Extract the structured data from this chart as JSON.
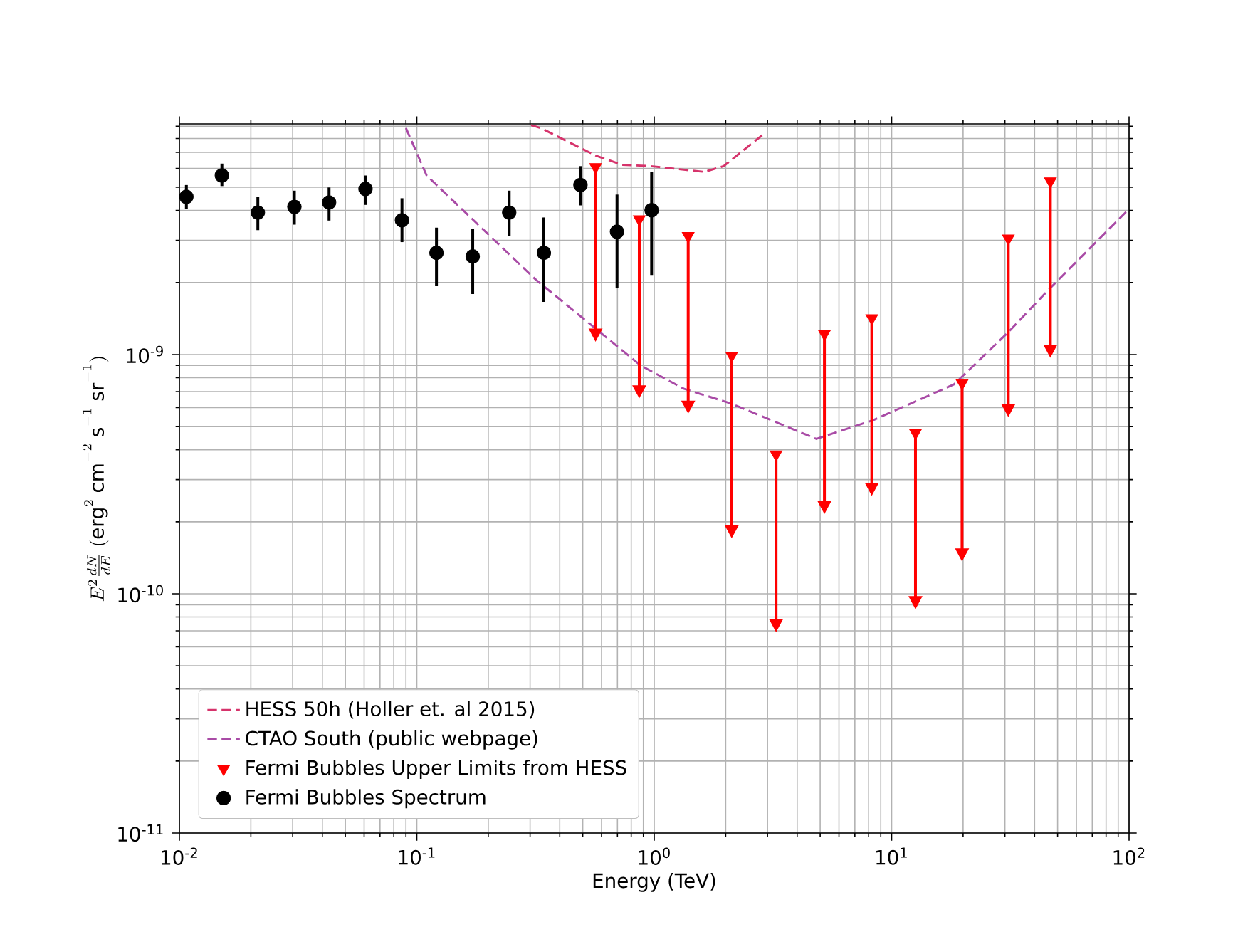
{
  "chart_data": {
    "type": "scatter",
    "xlabel": "Energy (TeV)",
    "ylabel": "E^{2}\\frac{dN}{dE}\\;(\\mathrm{erg}^{2}\\;\\mathrm{cm}^{-2}\\;\\mathrm{s}^{-1}\\;\\mathrm{sr}^{-1})",
    "log": "xy",
    "xlim": [
      0.01,
      100
    ],
    "ylim": [
      1e-11,
      9.2e-09
    ],
    "xticks": [
      {
        "value": 0.01,
        "label": "10$^{-2}$"
      },
      {
        "value": 0.1,
        "label": "10$^{-1}$"
      },
      {
        "value": 1,
        "label": "10$^{0}$"
      },
      {
        "value": 10,
        "label": "10$^{1}$"
      },
      {
        "value": 100,
        "label": "10$^{2}$"
      }
    ],
    "yticks": [
      {
        "value": 1e-11,
        "label": "10$^{-11}$"
      },
      {
        "value": 1e-10,
        "label": "10$^{-10}$"
      },
      {
        "value": 1e-09,
        "label": "10$^{-9}$"
      }
    ],
    "grid": true,
    "legend": "bottom left",
    "series": [
      {
        "name": "HESS 50h (Holler et. al 2015)",
        "type": "line",
        "line_style": "dashed",
        "color": "#d6336b",
        "x": [
          0.303,
          0.333,
          0.566,
          0.73,
          0.96,
          1.63,
          1.96,
          2.9
        ],
        "values": [
          9.1e-09,
          8.84e-09,
          6.79e-09,
          6.21e-09,
          6.13e-09,
          5.8e-09,
          6.13e-09,
          8.37e-09
        ]
      },
      {
        "name": "CTAO South (public webpage)",
        "type": "line",
        "line_style": "dashed",
        "color": "#a94ba6",
        "x": [
          0.09,
          0.11,
          0.318,
          0.877,
          1.33,
          2.1,
          4.82,
          8.36,
          18.3,
          31.0,
          45.9,
          100
        ],
        "values": [
          8.84e-09,
          5.6e-09,
          2.05e-09,
          9e-10,
          7.2e-10,
          6.25e-10,
          4.44e-10,
          5.32e-10,
          7.5e-10,
          1.24e-09,
          1.87e-09,
          4.06e-09
        ]
      },
      {
        "name": "Fermi Bubbles Upper Limits from HESS",
        "marker": "triangle",
        "color": "#ff0000",
        "x": [
          0.566,
          0.865,
          1.39,
          2.12,
          3.26,
          5.21,
          8.25,
          12.6,
          19.8,
          31.0,
          46.6
        ],
        "values": [
          6.08e-09,
          3.68e-09,
          3.13e-09,
          9.9e-10,
          3.83e-10,
          1.22e-09,
          1.42e-09,
          4.71e-10,
          7.6e-10,
          3.06e-09,
          5.3e-09
        ],
        "errors": [
          [
            1.26e-09,
            6.08e-09
          ],
          [
            7.3e-10,
            3.68e-09
          ],
          [
            6.3e-10,
            3.13e-09
          ],
          [
            1.9e-10,
            9.9e-10
          ],
          [
            7.7e-11,
            3.83e-10
          ],
          [
            2.4e-10,
            1.22e-09
          ],
          [
            2.86e-10,
            1.42e-09
          ],
          [
            9.6e-11,
            4.71e-10
          ],
          [
            1.52e-10,
            7.6e-10
          ],
          [
            6.1e-10,
            3.06e-09
          ],
          [
            1.08e-09,
            5.3e-09
          ]
        ]
      },
      {
        "name": "Fermi Bubbles Spectrum",
        "marker": "circle",
        "color": "#000000",
        "x": [
          0.0107,
          0.0151,
          0.0214,
          0.0305,
          0.0427,
          0.0608,
          0.0866,
          0.121,
          0.172,
          0.245,
          0.343,
          0.489,
          0.697,
          0.975
        ],
        "values": [
          4.56e-09,
          5.6e-09,
          3.92e-09,
          4.14e-09,
          4.32e-09,
          4.92e-09,
          3.64e-09,
          2.66e-09,
          2.57e-09,
          3.92e-09,
          2.66e-09,
          5.11e-09,
          3.26e-09,
          4.01e-09
        ],
        "errors": [
          [
            4.06e-09,
            5.11e-09
          ],
          [
            5.06e-09,
            6.28e-09
          ],
          [
            3.31e-09,
            4.56e-09
          ],
          [
            3.49e-09,
            4.84e-09
          ],
          [
            3.63e-09,
            4.99e-09
          ],
          [
            4.22e-09,
            5.6e-09
          ],
          [
            2.95e-09,
            4.5e-09
          ],
          [
            1.93e-09,
            3.39e-09
          ],
          [
            1.79e-09,
            3.35e-09
          ],
          [
            3.12e-09,
            4.84e-09
          ],
          [
            1.66e-09,
            3.74e-09
          ],
          [
            4.2e-09,
            6.13e-09
          ],
          [
            1.89e-09,
            4.66e-09
          ],
          [
            2.15e-09,
            5.8e-09
          ]
        ]
      }
    ]
  }
}
